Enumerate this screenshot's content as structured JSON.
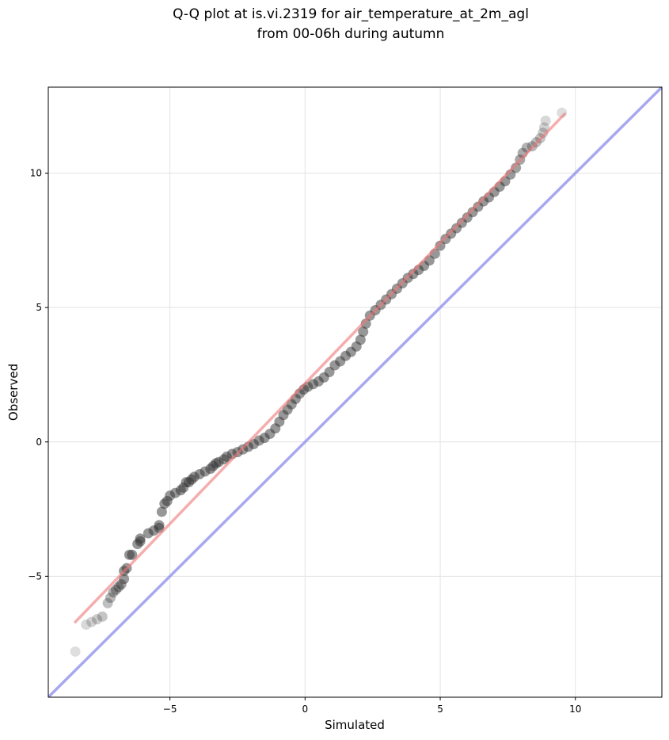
{
  "chart_data": {
    "type": "scatter",
    "title": [
      "Q-Q plot at is.vi.2319 for air_temperature_at_2m_agl",
      "from 00-06h during autumn"
    ],
    "xlabel": "Simulated",
    "ylabel": "Observed",
    "xlim": [
      -9.5,
      13.2
    ],
    "ylim": [
      -9.5,
      13.2
    ],
    "xticks": [
      -5,
      0,
      5,
      10
    ],
    "yticks": [
      -5,
      0,
      5,
      10
    ],
    "xtick_labels": [
      "−5",
      "0",
      "5",
      "10"
    ],
    "ytick_labels": [
      "−5",
      "0",
      "5",
      "10"
    ],
    "grid": true,
    "series": [
      {
        "kind": "points",
        "color": "#808080",
        "points": [
          [
            -8.5,
            -7.8
          ],
          [
            -8.1,
            -6.8
          ],
          [
            -7.9,
            -6.7
          ],
          [
            -7.7,
            -6.6
          ],
          [
            -7.5,
            -6.5
          ],
          [
            -7.3,
            -6.0
          ],
          [
            -7.2,
            -5.8
          ],
          [
            -7.1,
            -5.6
          ],
          [
            -7.0,
            -5.5
          ],
          [
            -6.9,
            -5.4
          ],
          [
            -6.8,
            -5.3
          ],
          [
            -6.7,
            -5.1
          ],
          [
            -6.7,
            -4.8
          ],
          [
            -6.6,
            -4.7
          ],
          [
            -6.5,
            -4.2
          ],
          [
            -6.4,
            -4.2
          ],
          [
            -6.2,
            -3.8
          ],
          [
            -6.1,
            -3.6
          ],
          [
            -6.1,
            -3.7
          ],
          [
            -5.8,
            -3.4
          ],
          [
            -5.6,
            -3.3
          ],
          [
            -5.4,
            -3.1
          ],
          [
            -5.4,
            -3.2
          ],
          [
            -5.3,
            -2.6
          ],
          [
            -5.2,
            -2.3
          ],
          [
            -5.1,
            -2.2
          ],
          [
            -5.0,
            -2.0
          ],
          [
            -4.8,
            -1.9
          ],
          [
            -4.6,
            -1.8
          ],
          [
            -4.5,
            -1.7
          ],
          [
            -4.4,
            -1.5
          ],
          [
            -4.3,
            -1.5
          ],
          [
            -4.2,
            -1.4
          ],
          [
            -4.1,
            -1.3
          ],
          [
            -3.9,
            -1.2
          ],
          [
            -3.7,
            -1.1
          ],
          [
            -3.5,
            -1.0
          ],
          [
            -3.4,
            -0.9
          ],
          [
            -3.3,
            -0.8
          ],
          [
            -3.2,
            -0.75
          ],
          [
            -3.0,
            -0.65
          ],
          [
            -2.9,
            -0.55
          ],
          [
            -2.7,
            -0.45
          ],
          [
            -2.5,
            -0.38
          ],
          [
            -2.3,
            -0.28
          ],
          [
            -2.1,
            -0.18
          ],
          [
            -1.9,
            -0.08
          ],
          [
            -1.7,
            0.05
          ],
          [
            -1.5,
            0.15
          ],
          [
            -1.3,
            0.3
          ],
          [
            -1.1,
            0.5
          ],
          [
            -0.95,
            0.75
          ],
          [
            -0.8,
            1.0
          ],
          [
            -0.65,
            1.2
          ],
          [
            -0.5,
            1.4
          ],
          [
            -0.35,
            1.6
          ],
          [
            -0.2,
            1.8
          ],
          [
            -0.05,
            1.95
          ],
          [
            0.1,
            2.05
          ],
          [
            0.3,
            2.15
          ],
          [
            0.5,
            2.25
          ],
          [
            0.7,
            2.4
          ],
          [
            0.9,
            2.6
          ],
          [
            1.1,
            2.85
          ],
          [
            1.3,
            3.0
          ],
          [
            1.5,
            3.2
          ],
          [
            1.7,
            3.35
          ],
          [
            1.9,
            3.55
          ],
          [
            2.05,
            3.8
          ],
          [
            2.15,
            4.1
          ],
          [
            2.25,
            4.4
          ],
          [
            2.4,
            4.7
          ],
          [
            2.6,
            4.9
          ],
          [
            2.8,
            5.1
          ],
          [
            3.0,
            5.3
          ],
          [
            3.2,
            5.5
          ],
          [
            3.4,
            5.7
          ],
          [
            3.6,
            5.9
          ],
          [
            3.8,
            6.1
          ],
          [
            4.0,
            6.25
          ],
          [
            4.2,
            6.4
          ],
          [
            4.4,
            6.55
          ],
          [
            4.6,
            6.75
          ],
          [
            4.8,
            7.0
          ],
          [
            5.0,
            7.3
          ],
          [
            5.2,
            7.55
          ],
          [
            5.4,
            7.75
          ],
          [
            5.6,
            7.95
          ],
          [
            5.8,
            8.15
          ],
          [
            6.0,
            8.35
          ],
          [
            6.2,
            8.55
          ],
          [
            6.4,
            8.75
          ],
          [
            6.6,
            8.95
          ],
          [
            6.8,
            9.1
          ],
          [
            7.0,
            9.3
          ],
          [
            7.2,
            9.5
          ],
          [
            7.4,
            9.7
          ],
          [
            7.6,
            9.95
          ],
          [
            7.8,
            10.2
          ],
          [
            7.95,
            10.5
          ],
          [
            8.05,
            10.75
          ],
          [
            8.2,
            10.95
          ],
          [
            8.4,
            11.0
          ],
          [
            8.55,
            11.15
          ],
          [
            8.7,
            11.3
          ],
          [
            8.8,
            11.5
          ],
          [
            8.85,
            11.7
          ],
          [
            8.9,
            11.95
          ],
          [
            9.5,
            12.25
          ]
        ]
      },
      {
        "kind": "fit-line",
        "color": "#f07878",
        "points": [
          [
            -8.5,
            -6.7
          ],
          [
            9.6,
            12.2
          ]
        ]
      },
      {
        "kind": "identity-line",
        "color": "#9999ee",
        "points": [
          [
            -9.5,
            -9.5
          ],
          [
            13.2,
            13.2
          ]
        ]
      }
    ]
  }
}
